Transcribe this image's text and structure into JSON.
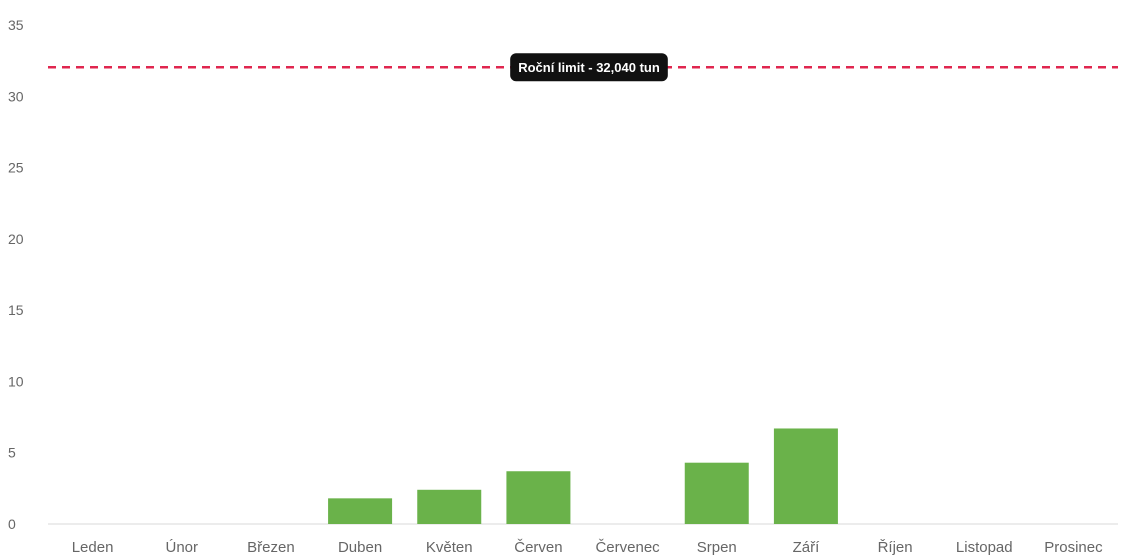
{
  "chart_data": {
    "type": "bar",
    "categories": [
      "Leden",
      "Únor",
      "Březen",
      "Duben",
      "Květen",
      "Červen",
      "Červenec",
      "Srpen",
      "Září",
      "Říjen",
      "Listopad",
      "Prosinec"
    ],
    "values": [
      0,
      0,
      0,
      1.8,
      2.4,
      3.7,
      0,
      4.3,
      6.7,
      0,
      0,
      0
    ],
    "title": "",
    "xlabel": "",
    "ylabel": "",
    "ylim": [
      0,
      35
    ],
    "yticks": [
      0,
      5,
      10,
      15,
      20,
      25,
      30,
      35
    ],
    "grid": false,
    "legend": "none",
    "bar_color": "#6ab24a",
    "reference_line": {
      "value": 32.04,
      "label": "Roční limit - 32,040 tun",
      "color": "#e0264f",
      "style": "dashed"
    }
  }
}
